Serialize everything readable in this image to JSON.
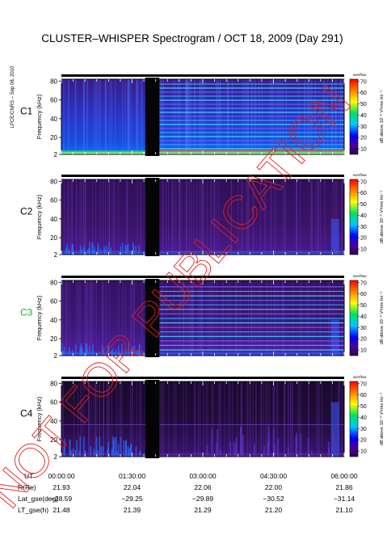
{
  "header": {
    "title": "CLUSTER–WHISPER Spectrogram / OCT 18, 2009 (Day 291)",
    "side_note": "LPCE/CNRS – Sep 08, 2010"
  },
  "watermark": "NOT FOR PUBLICATION",
  "chart_data": [
    {
      "type": "heatmap",
      "panel": "C1",
      "label_color": "#000000",
      "ylabel": "Frequency (kHz)",
      "yticks": [
        2,
        20,
        40,
        60,
        80
      ],
      "ylim": [
        2,
        82
      ],
      "colorbar": {
        "title": "overflow",
        "label": "dB above 10⁻⁸ V²rms Hz⁻¹",
        "ticks": [
          10,
          20,
          30,
          40,
          50,
          60,
          70
        ]
      },
      "gap_hours": [
        1.78,
        2.08
      ],
      "note": "dense horizontal interference lines after the data gap"
    },
    {
      "type": "heatmap",
      "panel": "C2",
      "label_color": "#000000",
      "ylabel": "Frequency (kHz)",
      "yticks": [
        2,
        20,
        40,
        60,
        80
      ],
      "ylim": [
        2,
        82
      ],
      "colorbar": {
        "title": "overflow",
        "label": "dB above 10⁻⁸ V²rms Hz⁻¹",
        "ticks": [
          10,
          20,
          30,
          40,
          50,
          60,
          70
        ]
      },
      "gap_hours": [
        1.78,
        2.08
      ]
    },
    {
      "type": "heatmap",
      "panel": "C3",
      "label_color": "#22aa22",
      "ylabel": "Frequency (kHz)",
      "yticks": [
        2,
        20,
        40,
        60,
        80
      ],
      "ylim": [
        2,
        82
      ],
      "colorbar": {
        "title": "overflow",
        "label": "dB above 10⁻⁸ V²rms Hz⁻¹",
        "ticks": [
          10,
          20,
          30,
          40,
          50,
          60,
          70
        ]
      },
      "gap_hours": [
        1.78,
        2.08
      ]
    },
    {
      "type": "heatmap",
      "panel": "C4",
      "label_color": "#000000",
      "ylabel": "Frequency (kHz)",
      "yticks": [
        2,
        20,
        40,
        60,
        80
      ],
      "ylim": [
        2,
        82
      ],
      "colorbar": {
        "title": "overflow",
        "label": "dB above 10⁻⁸ V²rms Hz⁻¹",
        "ticks": [
          10,
          20,
          30,
          40,
          50,
          60,
          70
        ]
      },
      "gap_hours": [
        1.78,
        2.08
      ]
    }
  ],
  "time_axis": {
    "xlim_hours": [
      0,
      6
    ],
    "tick_hours": [
      0,
      1.5,
      3,
      4.5,
      6
    ],
    "rows": [
      {
        "label": "UT",
        "values": [
          "00:00:00",
          "01:30:00",
          "03:00:00",
          "04:30:00",
          "06:00:00"
        ]
      },
      {
        "label": "R(Re)",
        "values": [
          "21.93",
          "22.04",
          "22.06",
          "22.00",
          "21.86"
        ]
      },
      {
        "label": "Lat_gse(deg)",
        "values": [
          "−28.59",
          "−29.25",
          "−29.89",
          "−30.52",
          "−31.14"
        ]
      },
      {
        "label": "LT_gse(h)",
        "values": [
          "21.48",
          "21.39",
          "21.29",
          "21.20",
          "21.10"
        ]
      }
    ]
  }
}
